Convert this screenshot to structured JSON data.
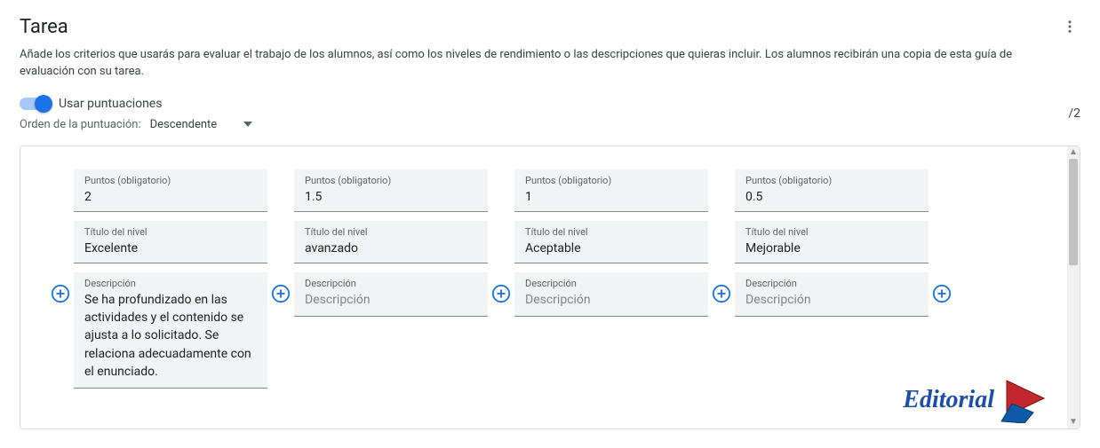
{
  "header": {
    "title": "Tarea",
    "description": "Añade los criterios que usarás para evaluar el trabajo de los alumnos, así como los niveles de rendimiento o las descripciones que quieras incluir. Los alumnos recibirán una copia de esta guía de evaluación con su tarea."
  },
  "controls": {
    "use_scores_label": "Usar puntuaciones",
    "use_scores_on": true,
    "order_label": "Orden de la puntuación:",
    "order_value": "Descendente",
    "total_points": "/2"
  },
  "labels": {
    "points": "Puntos (obligatorio)",
    "level_title": "Título del nivel",
    "description": "Descripción",
    "desc_placeholder": "Descripción"
  },
  "levels": [
    {
      "points": "2",
      "title": "Excelente",
      "description": "Se ha profundizado en las actividades y el contenido se ajusta a lo solicitado. Se relaciona adecuadamente con el enunciado."
    },
    {
      "points": "1.5",
      "title": "avanzado",
      "description": ""
    },
    {
      "points": "1",
      "title": "Aceptable",
      "description": ""
    },
    {
      "points": "0.5",
      "title": "Mejorable",
      "description": ""
    }
  ],
  "colors": {
    "accent": "#1a73e8",
    "text_primary": "#202124",
    "text_secondary": "#5f6368",
    "field_bg": "#f1f3f4",
    "border": "#dadce0",
    "watermark_blue": "#1a4ea8",
    "watermark_red": "#c1272d"
  },
  "watermark": {
    "text": "Editorial"
  }
}
